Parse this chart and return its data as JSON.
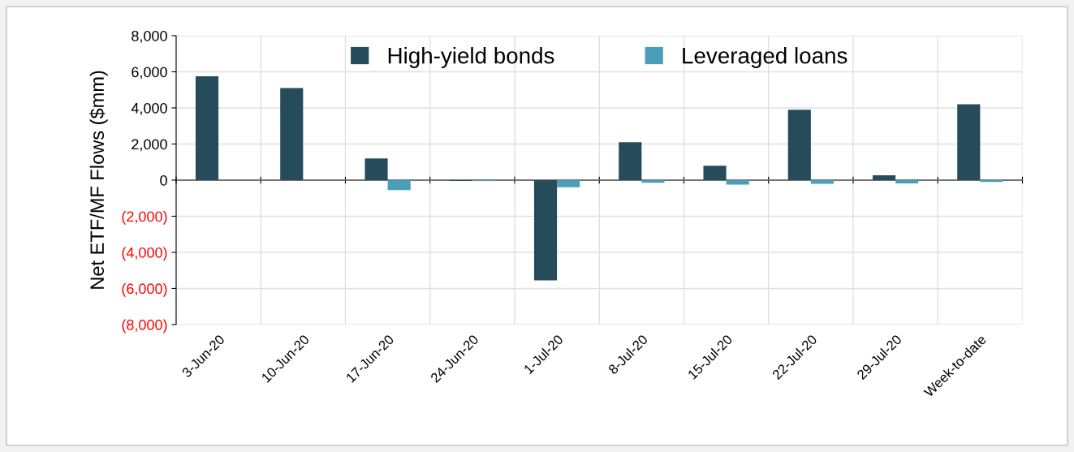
{
  "chart_data": {
    "type": "bar",
    "ylabel": "Net ETF/MF Flows ($mm)",
    "categories": [
      "3-Jun-20",
      "10-Jun-20",
      "17-Jun-20",
      "24-Jun-20",
      "1-Jul-20",
      "8-Jul-20",
      "15-Jul-20",
      "22-Jul-20",
      "29-Jul-20",
      "Week-to-date"
    ],
    "series": [
      {
        "name": "High-yield bonds",
        "color": "#264b5a",
        "values": [
          5750,
          5100,
          1200,
          -50,
          -5550,
          2100,
          800,
          3900,
          270,
          4200
        ]
      },
      {
        "name": "Leveraged loans",
        "color": "#4a9fb8",
        "values": [
          0,
          0,
          -550,
          -50,
          -400,
          -150,
          -250,
          -200,
          -180,
          -100
        ]
      }
    ],
    "ylim": [
      -8000,
      8000
    ],
    "yticks": [
      {
        "value": -8000,
        "label": "(8,000)"
      },
      {
        "value": -6000,
        "label": "(6,000)"
      },
      {
        "value": -4000,
        "label": "(4,000)"
      },
      {
        "value": -2000,
        "label": "(2,000)"
      },
      0,
      {
        "value": 2000,
        "label": "2,000"
      },
      {
        "value": 4000,
        "label": "4,000"
      },
      {
        "value": 6000,
        "label": "6,000"
      },
      {
        "value": 8000,
        "label": "8,000"
      }
    ],
    "grid": true,
    "legend": "top"
  }
}
